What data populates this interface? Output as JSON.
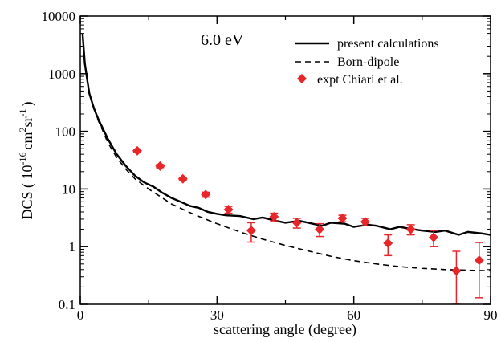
{
  "chart_data": {
    "type": "scatter",
    "title": "",
    "annotation": "6.0 eV",
    "xlabel": "scattering angle (degree)",
    "ylabel": {
      "prefix": "DCS ( 10",
      "exp1": "-16",
      "mid1": "cm",
      "exp2": "2",
      "mid2": "sr",
      "exp3": "-1",
      "suffix": ")"
    },
    "xlim": [
      0,
      90
    ],
    "ylim": [
      0.1,
      10000
    ],
    "yscale": "log",
    "grid": false,
    "legend_position": "top-right",
    "x_ticks": [
      0,
      30,
      60,
      90
    ],
    "x_tick_labels": [
      "0",
      "30",
      "60",
      "90"
    ],
    "y_ticks": [
      0.1,
      1,
      10,
      100,
      1000,
      10000
    ],
    "y_tick_labels": [
      "0.1",
      "1",
      "10",
      "100",
      "1000",
      "10000"
    ],
    "colors": {
      "axes": "#000000",
      "experiment": "#e8262a"
    },
    "series": [
      {
        "name": "present calculations",
        "style": "solid",
        "x": [
          0.5,
          1,
          1.5,
          2,
          3,
          4,
          5,
          6,
          8,
          10,
          12,
          14,
          16,
          18,
          20,
          22,
          24,
          26,
          28,
          30,
          32,
          35,
          38,
          40,
          43,
          45,
          48,
          50,
          53,
          55,
          58,
          60,
          63,
          65,
          68,
          70,
          73,
          75,
          78,
          80,
          83,
          85,
          88,
          90
        ],
        "y": [
          5000,
          1500,
          800,
          450,
          250,
          160,
          110,
          75,
          40,
          25,
          17,
          13,
          11,
          8.6,
          7.0,
          6.0,
          5.1,
          4.7,
          4.0,
          3.7,
          3.5,
          3.4,
          3.0,
          3.2,
          2.8,
          2.6,
          2.8,
          2.6,
          2.3,
          2.6,
          2.5,
          2.2,
          2.4,
          2.3,
          2.0,
          2.2,
          2.0,
          1.9,
          1.8,
          1.9,
          1.6,
          1.8,
          1.7,
          1.6
        ]
      },
      {
        "name": "Born-dipole",
        "style": "dashed",
        "x": [
          0.5,
          1,
          1.5,
          2,
          3,
          4,
          5,
          6,
          8,
          10,
          12,
          15,
          18,
          20,
          25,
          30,
          35,
          40,
          45,
          50,
          55,
          60,
          65,
          70,
          75,
          80,
          85,
          90
        ],
        "y": [
          5000,
          1500,
          800,
          450,
          250,
          150,
          100,
          65,
          35,
          22,
          15,
          10,
          7.0,
          5.5,
          3.6,
          2.5,
          1.8,
          1.35,
          1.05,
          0.84,
          0.68,
          0.57,
          0.5,
          0.45,
          0.42,
          0.4,
          0.39,
          0.38
        ]
      },
      {
        "name": "expt Chiari et al.",
        "style": "marker",
        "x": [
          12.5,
          17.5,
          22.5,
          27.5,
          32.5,
          37.5,
          42.5,
          47.5,
          52.5,
          57.5,
          62.5,
          67.5,
          72.5,
          77.5,
          82.5,
          87.5
        ],
        "y": [
          46,
          25,
          15,
          8.0,
          4.4,
          1.9,
          3.3,
          2.6,
          2.0,
          3.1,
          2.7,
          1.15,
          2.0,
          1.45,
          0.38,
          0.58
        ],
        "err_low": [
          3,
          1.5,
          1,
          0.8,
          0.6,
          0.7,
          0.5,
          0.5,
          0.5,
          0.4,
          0.4,
          0.45,
          0.4,
          0.45,
          0.33,
          0.45
        ],
        "err_high": [
          3,
          1.5,
          1,
          0.8,
          0.6,
          0.7,
          0.5,
          0.5,
          0.5,
          0.4,
          0.4,
          0.45,
          0.4,
          0.45,
          0.45,
          0.6
        ]
      }
    ]
  }
}
